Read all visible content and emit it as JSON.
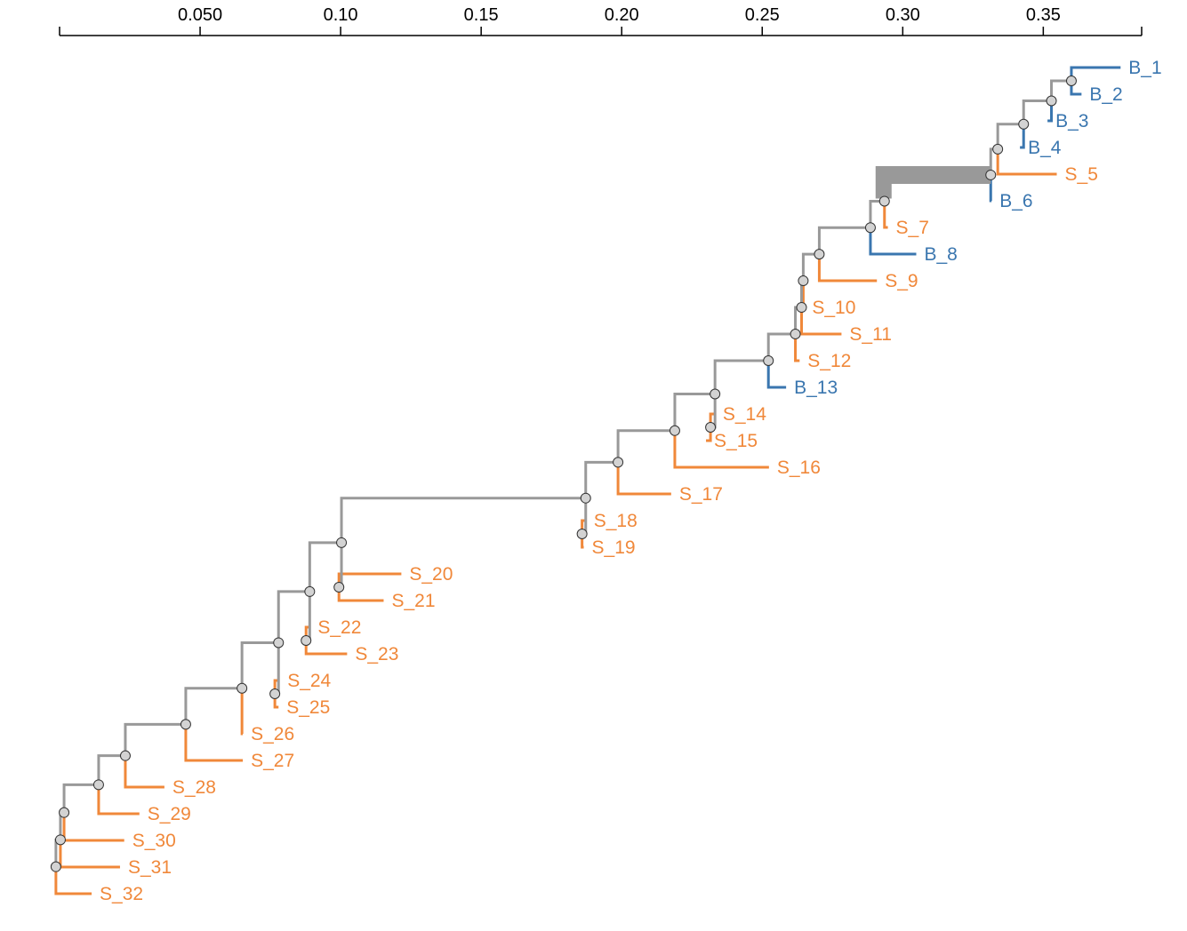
{
  "colors": {
    "internal": "#999999",
    "S": "#F0883A",
    "B": "#3A76AF",
    "node_fill": "#D3D3D3",
    "axis": "#000000"
  },
  "axis": {
    "scale_min": 0.0,
    "scale_max": 0.385,
    "ticks": [
      "0.050",
      "0.10",
      "0.15",
      "0.20",
      "0.25",
      "0.30",
      "0.35"
    ],
    "tick_values": [
      0.05,
      0.1,
      0.15,
      0.2,
      0.25,
      0.3,
      0.35
    ]
  },
  "tree": {
    "tips": [
      {
        "label": "B_1",
        "type": "B",
        "x": 0.3775
      },
      {
        "label": "B_2",
        "type": "B",
        "x": 0.3636
      },
      {
        "label": "B_3",
        "type": "B",
        "x": 0.3515
      },
      {
        "label": "B_4",
        "type": "B",
        "x": 0.3417
      },
      {
        "label": "S_5",
        "type": "S",
        "x": 0.3548
      },
      {
        "label": "B_6",
        "type": "B",
        "x": 0.3316
      },
      {
        "label": "S_7",
        "type": "S",
        "x": 0.2947
      },
      {
        "label": "B_8",
        "type": "B",
        "x": 0.3048
      },
      {
        "label": "S_9",
        "type": "S",
        "x": 0.2908
      },
      {
        "label": "S_10",
        "type": "S",
        "x": 0.2649
      },
      {
        "label": "S_11",
        "type": "S",
        "x": 0.2782
      },
      {
        "label": "S_12",
        "type": "S",
        "x": 0.2633
      },
      {
        "label": "B_13",
        "type": "B",
        "x": 0.2585
      },
      {
        "label": "S_14",
        "type": "S",
        "x": 0.2331
      },
      {
        "label": "S_15",
        "type": "S",
        "x": 0.23
      },
      {
        "label": "S_16",
        "type": "S",
        "x": 0.2524
      },
      {
        "label": "S_17",
        "type": "S",
        "x": 0.2176
      },
      {
        "label": "S_18",
        "type": "S",
        "x": 0.1872
      },
      {
        "label": "S_19",
        "type": "S",
        "x": 0.1865
      },
      {
        "label": "S_20",
        "type": "S",
        "x": 0.1216
      },
      {
        "label": "S_21",
        "type": "S",
        "x": 0.1153
      },
      {
        "label": "S_22",
        "type": "S",
        "x": 0.089
      },
      {
        "label": "S_23",
        "type": "S",
        "x": 0.1023
      },
      {
        "label": "S_24",
        "type": "S",
        "x": 0.0782
      },
      {
        "label": "S_25",
        "type": "S",
        "x": 0.0779
      },
      {
        "label": "S_26",
        "type": "S",
        "x": 0.0652
      },
      {
        "label": "S_27",
        "type": "S",
        "x": 0.0652
      },
      {
        "label": "S_28",
        "type": "S",
        "x": 0.0373
      },
      {
        "label": "S_29",
        "type": "S",
        "x": 0.0284
      },
      {
        "label": "S_30",
        "type": "S",
        "x": 0.023
      },
      {
        "label": "S_31",
        "type": "S",
        "x": 0.0215
      },
      {
        "label": "S_32",
        "type": "S",
        "x": 0.0114
      }
    ],
    "internal_nodes": [
      {
        "id": "n_b1_b2",
        "x": 0.36,
        "children": [
          "B_1",
          "B_2"
        ]
      },
      {
        "id": "n_b1_b3",
        "x": 0.3529,
        "children": [
          "n_b1_b2",
          "B_3"
        ]
      },
      {
        "id": "n_b1_b4",
        "x": 0.343,
        "children": [
          "n_b1_b3",
          "B_4"
        ]
      },
      {
        "id": "n_b1_s5",
        "x": 0.3338,
        "children": [
          "n_b1_b4",
          "S_5"
        ]
      },
      {
        "id": "n_b1_b6",
        "x": 0.3313,
        "children": [
          "n_b1_s5",
          "B_6"
        ]
      },
      {
        "id": "n_b1_s7",
        "x": 0.2935,
        "children": [
          "n_b1_b6",
          "S_7"
        ]
      },
      {
        "id": "n_b1_b8",
        "x": 0.2885,
        "children": [
          "n_b1_s7",
          "B_8"
        ]
      },
      {
        "id": "n_b1_s9",
        "x": 0.2703,
        "children": [
          "n_b1_b8",
          "S_9"
        ]
      },
      {
        "id": "n_b1_s10",
        "x": 0.2646,
        "children": [
          "n_b1_s9",
          "S_10"
        ]
      },
      {
        "id": "n_b1_s11",
        "x": 0.264,
        "children": [
          "n_b1_s10",
          "S_11"
        ]
      },
      {
        "id": "n_b1_s12",
        "x": 0.2618,
        "children": [
          "n_b1_s11",
          "S_12"
        ]
      },
      {
        "id": "n_b1_b13",
        "x": 0.2522,
        "children": [
          "n_b1_s12",
          "B_13"
        ]
      },
      {
        "id": "n_s14_s15",
        "x": 0.2316,
        "children": [
          "S_14",
          "S_15"
        ]
      },
      {
        "id": "n_b1_s15",
        "x": 0.2332,
        "children": [
          "n_b1_b13",
          "n_s14_s15"
        ]
      },
      {
        "id": "n_b1_s16",
        "x": 0.2189,
        "children": [
          "n_b1_s15",
          "S_16"
        ]
      },
      {
        "id": "n_b1_s17",
        "x": 0.1987,
        "children": [
          "n_b1_s16",
          "S_17"
        ]
      },
      {
        "id": "n_s18_s19",
        "x": 0.1859,
        "children": [
          "S_18",
          "S_19"
        ]
      },
      {
        "id": "n_b1_s19",
        "x": 0.1872,
        "children": [
          "n_b1_s17",
          "n_s18_s19"
        ]
      },
      {
        "id": "n_s20_s21",
        "x": 0.0994,
        "children": [
          "S_20",
          "S_21"
        ]
      },
      {
        "id": "n_b1_s21",
        "x": 0.1003,
        "children": [
          "n_b1_s19",
          "n_s20_s21"
        ]
      },
      {
        "id": "n_s22_s23",
        "x": 0.0877,
        "children": [
          "S_22",
          "S_23"
        ]
      },
      {
        "id": "n_b1_s23",
        "x": 0.089,
        "children": [
          "n_b1_s21",
          "n_s22_s23"
        ]
      },
      {
        "id": "n_s24_s25",
        "x": 0.0766,
        "children": [
          "S_24",
          "S_25"
        ]
      },
      {
        "id": "n_b1_s25",
        "x": 0.0779,
        "children": [
          "n_b1_s23",
          "n_s24_s25"
        ]
      },
      {
        "id": "n_b1_s26",
        "x": 0.0649,
        "children": [
          "n_b1_s25",
          "S_26"
        ]
      },
      {
        "id": "n_b1_s27",
        "x": 0.0449,
        "children": [
          "n_b1_s26",
          "S_27"
        ]
      },
      {
        "id": "n_b1_s28",
        "x": 0.0234,
        "children": [
          "n_b1_s27",
          "S_28"
        ]
      },
      {
        "id": "n_b1_s29",
        "x": 0.0139,
        "children": [
          "n_b1_s28",
          "S_29"
        ]
      },
      {
        "id": "n_b1_s30",
        "x": 0.0016,
        "children": [
          "n_b1_s29",
          "S_30"
        ]
      },
      {
        "id": "n_b1_s31",
        "x": 0.0003,
        "children": [
          "n_b1_s30",
          "S_31"
        ]
      },
      {
        "id": "root",
        "x": -0.0013,
        "children": [
          "n_b1_s31",
          "S_32"
        ]
      }
    ]
  }
}
